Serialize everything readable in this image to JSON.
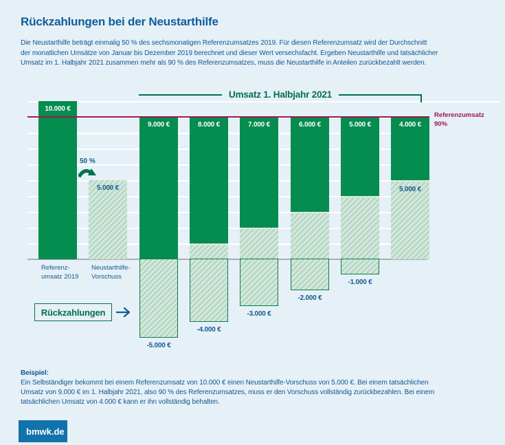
{
  "header": {
    "title": "Rückzahlungen bei der Neustarthilfe",
    "intro": "Die Neustarthilfe beträgt einmalig 50 % des sechsmonatigen Referenzumsatzes 2019. Für diesen Referenzumsatz wird der Durchschnitt\nder monatlichen Umsätze von Januar bis Dezember 2019 berechnet und dieser Wert versechsfacht. Ergeben Neustarthilfe und tatsächlicher\nUmsatz im 1. Halbjahr 2021 zusammen mehr als 90 % des Referenzumsatzes, muss die Neustarthilfe in Anteilen zurückbezahlt werden."
  },
  "chart_data": {
    "type": "bar",
    "title": "Umsatz 1. Halbjahr 2021",
    "unit": "EUR",
    "axis": {
      "ymin": -5000,
      "ymax": 10000,
      "gridline_step": 1000,
      "grid": true
    },
    "reference_line": {
      "value": 9000,
      "label": "Referenzumsatz\n90%",
      "color": "#a01550"
    },
    "advance_note": "50 %",
    "bars": [
      {
        "id": "referenzumsatz-2019",
        "solid_value": 10000,
        "solid_label": "10.000 €",
        "below_label": "Referenz-\numsatz 2019"
      },
      {
        "id": "neustarthilfe-vorschuss",
        "hatch_value": 5000,
        "hatch_label": "5.000 €",
        "below_label": "Neustarthilfe-\nVorschuss"
      },
      {
        "id": "umsatz-9000",
        "solid_value": 9000,
        "solid_label": "9.000 €",
        "hatch_value": 0,
        "repay_value": 5000,
        "repay_label": "-5.000 €"
      },
      {
        "id": "umsatz-8000",
        "solid_value": 8000,
        "solid_label": "8.000 €",
        "hatch_value": 1000,
        "repay_value": 4000,
        "repay_label": "-4.000 €"
      },
      {
        "id": "umsatz-7000",
        "solid_value": 7000,
        "solid_label": "7.000 €",
        "hatch_value": 2000,
        "repay_value": 3000,
        "repay_label": "-3.000 €"
      },
      {
        "id": "umsatz-6000",
        "solid_value": 6000,
        "solid_label": "6.000 €",
        "hatch_value": 3000,
        "repay_value": 2000,
        "repay_label": "-2.000 €"
      },
      {
        "id": "umsatz-5000",
        "solid_value": 5000,
        "solid_label": "5.000 €",
        "hatch_value": 4000,
        "repay_value": 1000,
        "repay_label": "-1.000 €"
      },
      {
        "id": "umsatz-4000",
        "solid_value": 4000,
        "solid_label": "4.000 €",
        "hatch_value": 5000,
        "hatch_label": "5.000 €",
        "repay_value": 0
      }
    ]
  },
  "legend": {
    "repayments_label": "Rückzahlungen"
  },
  "example": {
    "heading": "Beispiel:",
    "text": "Ein Selbständiger bekommt bei einem Referenzumsatz von 10.000 € einen Neustarthilfe-Vorschuss von 5.000 €. Bei einem tatsächlichen\nUmsatz von 9.000 € im 1. Halbjahr 2021, also 90 % des Referenzumsatzes, muss er den Vorschuss vollständig zurückbezahlen. Bei einem\ntatsächlichen Umsatz von 4.000 € kann er ihn vollständig behalten."
  },
  "footer": {
    "brand": "bmwk.de"
  },
  "colors": {
    "background": "#e6f0f7",
    "bar_green": "#058c4f",
    "hatch_base": "#b7d8c6",
    "hatch_stripe": "#d7eadf",
    "dark_green": "#00714b",
    "reference_red": "#a01550",
    "heading_blue": "#0f5c99",
    "text_blue": "#12578f",
    "label_blue": "#155a8f",
    "brand_blue": "#1173ab",
    "baseline_gray": "#a8aeb4"
  }
}
